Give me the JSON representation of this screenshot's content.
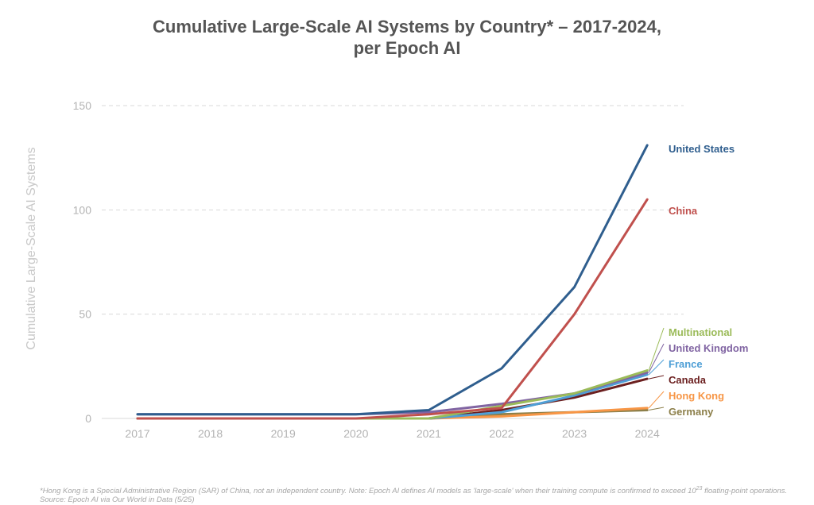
{
  "title_line1": "Cumulative Large-Scale AI Systems by Country* – 2017-2024,",
  "title_line2": "per Epoch AI",
  "footnote_part1": "*Hong Kong is a Special Administrative Region (SAR) of China, not an independent country. Note: Epoch AI defines AI models as 'large-scale' when their training compute is confirmed to exceed 10",
  "footnote_sup": "23",
  "footnote_part2": " floating-point operations. Source: Epoch AI via Our World in Data (5/25)",
  "chart_data": {
    "type": "line",
    "title": "Cumulative Large-Scale AI Systems by Country* – 2017-2024, per Epoch AI",
    "ylabel": "Cumulative Large-Scale AI Systems",
    "xlabel": "",
    "x": [
      "2017",
      "2018",
      "2019",
      "2020",
      "2021",
      "2022",
      "2023",
      "2024"
    ],
    "ylim": [
      0,
      150
    ],
    "yticks": [
      "0",
      "50",
      "100",
      "150"
    ],
    "grid": "horizontal dashed",
    "legend": "right, labels at line ends",
    "series": [
      {
        "name": "United States",
        "color": "#2f5e8e",
        "values": [
          2,
          2,
          2,
          2,
          4,
          24,
          63,
          131
        ]
      },
      {
        "name": "China",
        "color": "#c0504d",
        "values": [
          0,
          0,
          0,
          0,
          2,
          5,
          50,
          105
        ]
      },
      {
        "name": "Multinational",
        "color": "#9bbb59",
        "values": [
          0,
          0,
          0,
          0,
          0,
          6,
          12,
          23
        ]
      },
      {
        "name": "United Kingdom",
        "color": "#8064a2",
        "values": [
          2,
          2,
          2,
          2,
          3,
          7,
          12,
          22
        ]
      },
      {
        "name": "France",
        "color": "#4f9fd6",
        "values": [
          0,
          0,
          0,
          0,
          0,
          3,
          11,
          21
        ]
      },
      {
        "name": "Canada",
        "color": "#6b1f1f",
        "values": [
          0,
          0,
          0,
          0,
          0,
          4,
          10,
          19
        ]
      },
      {
        "name": "Hong Kong",
        "color": "#f79646",
        "values": [
          0,
          0,
          0,
          0,
          0,
          1,
          3,
          5
        ]
      },
      {
        "name": "Germany",
        "color": "#8c7f4a",
        "values": [
          0,
          0,
          0,
          0,
          0,
          2,
          3,
          4
        ]
      }
    ]
  }
}
